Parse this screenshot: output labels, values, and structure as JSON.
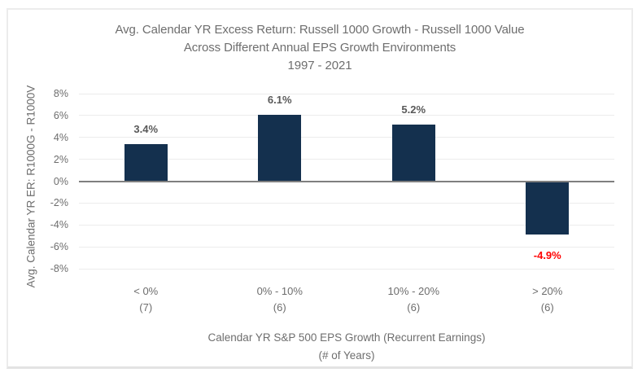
{
  "title": {
    "line1": "Avg. Calendar YR Excess Return: Russell 1000 Growth - Russell 1000 Value",
    "line2": "Across Different Annual EPS Growth Environments",
    "line3": "1997 - 2021"
  },
  "axes": {
    "y_title": "Avg. Calendar YR ER: R1000G - R1000V",
    "x_title_line1": "Calendar YR S&P 500 EPS Growth (Recurrent Earnings)",
    "x_title_line2": "(# of Years)"
  },
  "chart_data": {
    "type": "bar",
    "title": "Avg. Calendar YR Excess Return: Russell 1000 Growth - Russell 1000 Value Across Different Annual EPS Growth Environments 1997 - 2021",
    "categories": [
      "< 0%",
      "0% - 10%",
      "10% - 20%",
      "> 20%"
    ],
    "category_sublabels": [
      "(7)",
      "(6)",
      "(6)",
      "(6)"
    ],
    "values": [
      3.4,
      6.1,
      5.2,
      -4.9
    ],
    "value_labels": [
      "3.4%",
      "6.1%",
      "5.2%",
      "-4.9%"
    ],
    "value_label_colors": [
      "#595959",
      "#595959",
      "#595959",
      "#ff0000"
    ],
    "xlabel": "Calendar YR S&P 500 EPS Growth (Recurrent Earnings) (# of Years)",
    "ylabel": "Avg. Calendar YR ER: R1000G - R1000V",
    "ylim": [
      -8,
      8
    ],
    "y_tick_step": 2,
    "y_tick_labels": [
      "8%",
      "6%",
      "4%",
      "2%",
      "0%",
      "-2%",
      "-4%",
      "-6%",
      "-8%"
    ],
    "grid": true,
    "legend": "none",
    "bar_color": "#14304e",
    "gridline_color": "#ececec",
    "axis_line_color": "#7f7f7f"
  }
}
